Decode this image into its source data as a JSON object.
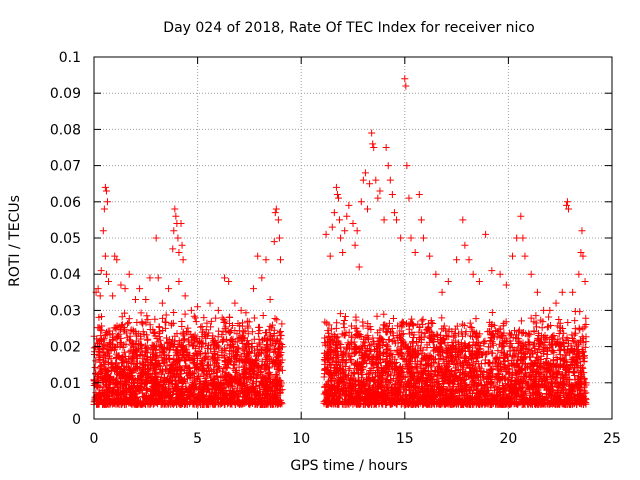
{
  "chart_data": {
    "type": "scatter",
    "title": "Day 024 of 2018, Rate Of TEC Index for receiver nico",
    "xlabel": "GPS time / hours",
    "ylabel": "ROTI / TECUs",
    "xlim": [
      0,
      25
    ],
    "ylim": [
      0,
      0.1
    ],
    "xticks": [
      0,
      5,
      10,
      15,
      20,
      25
    ],
    "xtick_labels": [
      "0",
      "5",
      "10",
      "15",
      "20",
      "25"
    ],
    "yticks": [
      0,
      0.01,
      0.02,
      0.03,
      0.04,
      0.05,
      0.06,
      0.07,
      0.08,
      0.09,
      0.1
    ],
    "ytick_labels": [
      "0",
      "0.01",
      "0.02",
      "0.03",
      "0.04",
      "0.05",
      "0.06",
      "0.07",
      "0.08",
      "0.09",
      "0.1"
    ],
    "grid": true,
    "marker": "+",
    "color": "#ff0000",
    "series": [
      {
        "name": "ROTI",
        "data_gap_hours": [
          9.1,
          11.1
        ],
        "points": [
          [
            0.1,
            0.035
          ],
          [
            0.2,
            0.036
          ],
          [
            0.3,
            0.034
          ],
          [
            0.35,
            0.041
          ],
          [
            0.45,
            0.052
          ],
          [
            0.5,
            0.058
          ],
          [
            0.55,
            0.064
          ],
          [
            0.6,
            0.063
          ],
          [
            0.65,
            0.06
          ],
          [
            0.55,
            0.045
          ],
          [
            0.6,
            0.04
          ],
          [
            0.7,
            0.038
          ],
          [
            0.9,
            0.034
          ],
          [
            1.0,
            0.045
          ],
          [
            1.1,
            0.044
          ],
          [
            1.3,
            0.037
          ],
          [
            1.5,
            0.036
          ],
          [
            1.7,
            0.04
          ],
          [
            2.0,
            0.033
          ],
          [
            2.2,
            0.036
          ],
          [
            2.5,
            0.033
          ],
          [
            2.7,
            0.039
          ],
          [
            3.0,
            0.05
          ],
          [
            3.1,
            0.039
          ],
          [
            3.3,
            0.032
          ],
          [
            3.6,
            0.036
          ],
          [
            3.8,
            0.047
          ],
          [
            3.85,
            0.052
          ],
          [
            3.9,
            0.058
          ],
          [
            3.95,
            0.056
          ],
          [
            4.0,
            0.054
          ],
          [
            4.05,
            0.05
          ],
          [
            4.1,
            0.046
          ],
          [
            4.2,
            0.054
          ],
          [
            4.25,
            0.048
          ],
          [
            4.3,
            0.044
          ],
          [
            4.1,
            0.038
          ],
          [
            4.4,
            0.034
          ],
          [
            4.7,
            0.03
          ],
          [
            5.0,
            0.031
          ],
          [
            5.3,
            0.028
          ],
          [
            5.6,
            0.032
          ],
          [
            6.0,
            0.03
          ],
          [
            6.3,
            0.039
          ],
          [
            6.5,
            0.038
          ],
          [
            6.8,
            0.032
          ],
          [
            7.1,
            0.03
          ],
          [
            7.4,
            0.027
          ],
          [
            7.7,
            0.036
          ],
          [
            7.9,
            0.045
          ],
          [
            8.1,
            0.039
          ],
          [
            8.3,
            0.044
          ],
          [
            8.5,
            0.033
          ],
          [
            8.7,
            0.049
          ],
          [
            8.75,
            0.057
          ],
          [
            8.8,
            0.058
          ],
          [
            8.9,
            0.055
          ],
          [
            8.95,
            0.05
          ],
          [
            9.0,
            0.044
          ],
          [
            11.2,
            0.051
          ],
          [
            11.4,
            0.045
          ],
          [
            11.5,
            0.053
          ],
          [
            11.6,
            0.057
          ],
          [
            11.7,
            0.064
          ],
          [
            11.75,
            0.062
          ],
          [
            11.8,
            0.061
          ],
          [
            11.85,
            0.055
          ],
          [
            11.9,
            0.05
          ],
          [
            12.0,
            0.046
          ],
          [
            12.1,
            0.052
          ],
          [
            12.2,
            0.056
          ],
          [
            12.3,
            0.059
          ],
          [
            12.5,
            0.054
          ],
          [
            12.6,
            0.048
          ],
          [
            12.7,
            0.052
          ],
          [
            12.8,
            0.042
          ],
          [
            12.9,
            0.06
          ],
          [
            13.0,
            0.066
          ],
          [
            13.1,
            0.068
          ],
          [
            13.2,
            0.058
          ],
          [
            13.3,
            0.065
          ],
          [
            13.4,
            0.079
          ],
          [
            13.45,
            0.076
          ],
          [
            13.5,
            0.075
          ],
          [
            13.6,
            0.066
          ],
          [
            13.7,
            0.061
          ],
          [
            13.8,
            0.063
          ],
          [
            14.0,
            0.055
          ],
          [
            14.1,
            0.075
          ],
          [
            14.2,
            0.07
          ],
          [
            14.3,
            0.066
          ],
          [
            14.4,
            0.062
          ],
          [
            14.5,
            0.057
          ],
          [
            14.6,
            0.055
          ],
          [
            14.8,
            0.05
          ],
          [
            15.0,
            0.094
          ],
          [
            15.05,
            0.092
          ],
          [
            15.1,
            0.07
          ],
          [
            15.2,
            0.061
          ],
          [
            15.3,
            0.05
          ],
          [
            15.5,
            0.046
          ],
          [
            15.7,
            0.062
          ],
          [
            15.8,
            0.055
          ],
          [
            15.9,
            0.05
          ],
          [
            16.2,
            0.045
          ],
          [
            16.5,
            0.04
          ],
          [
            16.8,
            0.035
          ],
          [
            17.1,
            0.038
          ],
          [
            17.5,
            0.044
          ],
          [
            17.8,
            0.055
          ],
          [
            17.9,
            0.048
          ],
          [
            18.1,
            0.044
          ],
          [
            18.3,
            0.04
          ],
          [
            18.6,
            0.038
          ],
          [
            18.9,
            0.051
          ],
          [
            19.2,
            0.041
          ],
          [
            19.6,
            0.04
          ],
          [
            19.9,
            0.037
          ],
          [
            20.2,
            0.045
          ],
          [
            20.4,
            0.05
          ],
          [
            20.6,
            0.056
          ],
          [
            20.7,
            0.05
          ],
          [
            20.8,
            0.045
          ],
          [
            21.1,
            0.04
          ],
          [
            21.4,
            0.035
          ],
          [
            21.7,
            0.03
          ],
          [
            22.0,
            0.03
          ],
          [
            22.3,
            0.032
          ],
          [
            22.6,
            0.035
          ],
          [
            22.8,
            0.059
          ],
          [
            22.85,
            0.06
          ],
          [
            22.9,
            0.058
          ],
          [
            23.1,
            0.035
          ],
          [
            23.4,
            0.04
          ],
          [
            23.5,
            0.046
          ],
          [
            23.55,
            0.052
          ],
          [
            23.6,
            0.045
          ],
          [
            23.7,
            0.038
          ]
        ]
      }
    ],
    "band": {
      "segments": [
        [
          0.0,
          9.1
        ],
        [
          11.1,
          23.75
        ]
      ],
      "typical_range": [
        0.004,
        0.03
      ]
    }
  }
}
